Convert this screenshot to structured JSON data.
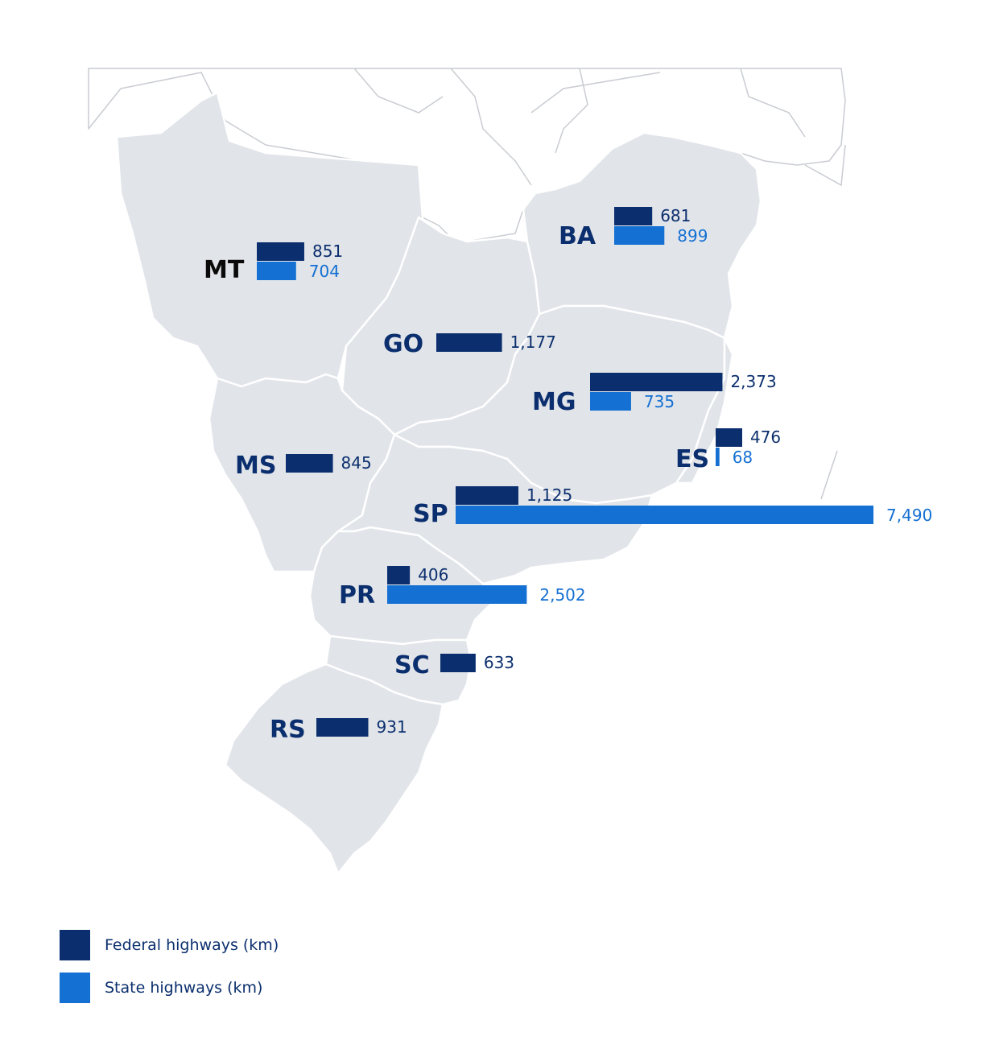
{
  "colors": {
    "federal": "#0b2f6e",
    "state": "#1470d2",
    "land": "#e1e4e9"
  },
  "legend": {
    "federal_label": "Federal highways (km)",
    "state_label": "State highways (km)"
  },
  "chart_data": {
    "type": "bar",
    "series": [
      {
        "name": "Federal highways (km)",
        "key": "federal"
      },
      {
        "name": "State highways (km)",
        "key": "state"
      }
    ],
    "states": [
      {
        "code": "MT",
        "federal": 851,
        "state": 704,
        "federal_label": "851",
        "state_label": "704"
      },
      {
        "code": "BA",
        "federal": 681,
        "state": 899,
        "federal_label": "681",
        "state_label": "899"
      },
      {
        "code": "GO",
        "federal": 1177,
        "state": null,
        "federal_label": "1,177",
        "state_label": ""
      },
      {
        "code": "MG",
        "federal": 2373,
        "state": 735,
        "federal_label": "2,373",
        "state_label": "735"
      },
      {
        "code": "ES",
        "federal": 476,
        "state": 68,
        "federal_label": "476",
        "state_label": "68"
      },
      {
        "code": "MS",
        "federal": 845,
        "state": null,
        "federal_label": "845",
        "state_label": ""
      },
      {
        "code": "SP",
        "federal": 1125,
        "state": 7490,
        "federal_label": "1,125",
        "state_label": "7,490"
      },
      {
        "code": "PR",
        "federal": 406,
        "state": 2502,
        "federal_label": "406",
        "state_label": "2,502"
      },
      {
        "code": "SC",
        "federal": 633,
        "state": null,
        "federal_label": "633",
        "state_label": ""
      },
      {
        "code": "RS",
        "federal": 931,
        "state": null,
        "federal_label": "931",
        "state_label": ""
      }
    ]
  }
}
